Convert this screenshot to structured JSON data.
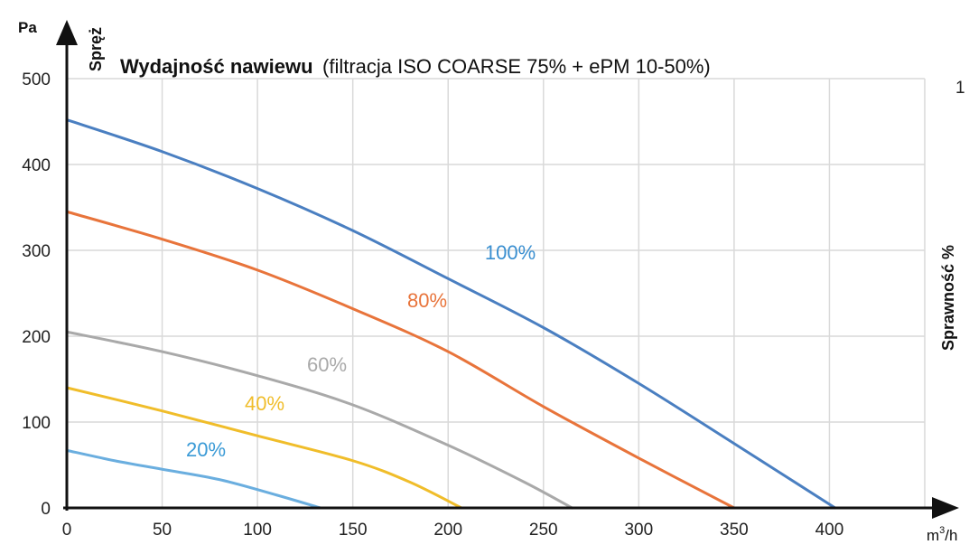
{
  "chart_data": {
    "type": "line",
    "title": "Wydajność nawiewu",
    "subtitle": "(filtracja ISO COARSE 75% + ePM 10-50%)",
    "ylabel": "Spręż",
    "yunit": "Pa",
    "xunit_base": "m",
    "xunit_sup": "3",
    "xunit_tail": "/h",
    "right_axis_label": "Sprawność %",
    "right_axis_tick": "1",
    "xlim": [
      0,
      450
    ],
    "ylim": [
      0,
      500
    ],
    "xticks": [
      "0",
      "50",
      "100",
      "150",
      "200",
      "250",
      "300",
      "350",
      "400"
    ],
    "yticks": [
      "0",
      "100",
      "200",
      "300",
      "400",
      "500"
    ],
    "grid": true,
    "series": [
      {
        "name": "100%",
        "color": "#4a7fc1",
        "label_color": "#3a8fd0",
        "x": [
          0,
          50,
          100,
          150,
          200,
          250,
          300,
          350,
          403
        ],
        "y": [
          452,
          415,
          372,
          323,
          267,
          210,
          145,
          75,
          0
        ]
      },
      {
        "name": "80%",
        "color": "#e8743b",
        "label_color": "#e8743b",
        "x": [
          0,
          50,
          100,
          150,
          200,
          250,
          300,
          350
        ],
        "y": [
          345,
          313,
          277,
          232,
          182,
          118,
          58,
          0
        ]
      },
      {
        "name": "60%",
        "color": "#a9a9a9",
        "label_color": "#a9a9a9",
        "x": [
          0,
          50,
          100,
          150,
          200,
          240,
          265
        ],
        "y": [
          205,
          182,
          154,
          120,
          73,
          30,
          0
        ]
      },
      {
        "name": "40%",
        "color": "#f0bd2a",
        "label_color": "#f0bd2a",
        "x": [
          0,
          50,
          100,
          150,
          180,
          207
        ],
        "y": [
          140,
          113,
          84,
          55,
          30,
          0
        ]
      },
      {
        "name": "20%",
        "color": "#6aaedf",
        "label_color": "#3a9ad6",
        "x": [
          0,
          25,
          50,
          80,
          110,
          133
        ],
        "y": [
          67,
          55,
          45,
          33,
          15,
          0
        ]
      }
    ]
  }
}
